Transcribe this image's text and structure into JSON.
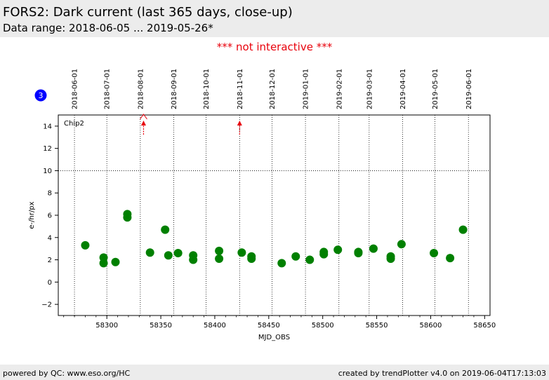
{
  "header": {
    "title": "FORS2: Dark current (last 365 days, close-up)",
    "subtitle": "Data range: 2018-06-05 ... 2019-05-26*"
  },
  "notice": "*** not interactive ***",
  "footer": {
    "left": "powered by QC: www.eso.org/HC",
    "right": "created by trendPlotter v4.0 on 2019-06-04T17:13:03"
  },
  "badge": "3",
  "colors": {
    "points": "#008000",
    "arrows": "#e8000b",
    "badge": "#0000ff"
  },
  "chart_data": {
    "type": "scatter",
    "panel_label": "Chip2",
    "xlabel": "MJD_OBS",
    "ylabel": "e-/hr/px",
    "xlim": [
      58255,
      58655
    ],
    "ylim": [
      -3,
      15
    ],
    "xticks": [
      58300,
      58350,
      58400,
      58450,
      58500,
      58550,
      58600,
      58650
    ],
    "yticks": [
      -2,
      0,
      2,
      4,
      6,
      8,
      10,
      12,
      14
    ],
    "reference_line": 10,
    "date_markers": [
      {
        "label": "2018-06-01",
        "x": 58270
      },
      {
        "label": "2018-07-01",
        "x": 58300
      },
      {
        "label": "2018-08-01",
        "x": 58331
      },
      {
        "label": "2018-09-01",
        "x": 58362
      },
      {
        "label": "2018-10-01",
        "x": 58392
      },
      {
        "label": "2018-11-01",
        "x": 58423
      },
      {
        "label": "2018-12-01",
        "x": 58453
      },
      {
        "label": "2019-01-01",
        "x": 58484
      },
      {
        "label": "2019-02-01",
        "x": 58515
      },
      {
        "label": "2019-03-01",
        "x": 58543
      },
      {
        "label": "2019-04-01",
        "x": 58574
      },
      {
        "label": "2019-05-01",
        "x": 58604
      },
      {
        "label": "2019-06-01",
        "x": 58635
      }
    ],
    "out_of_range_markers": [
      58334,
      58423
    ],
    "points": [
      {
        "x": 58280,
        "y": 3.3
      },
      {
        "x": 58297,
        "y": 2.2
      },
      {
        "x": 58297,
        "y": 1.7
      },
      {
        "x": 58308,
        "y": 1.8
      },
      {
        "x": 58319,
        "y": 6.1
      },
      {
        "x": 58319,
        "y": 5.8
      },
      {
        "x": 58340,
        "y": 2.65
      },
      {
        "x": 58354,
        "y": 4.7
      },
      {
        "x": 58357,
        "y": 2.4
      },
      {
        "x": 58366,
        "y": 2.6
      },
      {
        "x": 58380,
        "y": 2.4
      },
      {
        "x": 58380,
        "y": 2.0
      },
      {
        "x": 58404,
        "y": 2.8
      },
      {
        "x": 58404,
        "y": 2.1
      },
      {
        "x": 58425,
        "y": 2.65
      },
      {
        "x": 58434,
        "y": 2.3
      },
      {
        "x": 58434,
        "y": 2.1
      },
      {
        "x": 58462,
        "y": 1.7
      },
      {
        "x": 58475,
        "y": 2.3
      },
      {
        "x": 58488,
        "y": 2.0
      },
      {
        "x": 58501,
        "y": 2.7
      },
      {
        "x": 58501,
        "y": 2.5
      },
      {
        "x": 58514,
        "y": 2.9
      },
      {
        "x": 58533,
        "y": 2.7
      },
      {
        "x": 58533,
        "y": 2.6
      },
      {
        "x": 58547,
        "y": 3.0
      },
      {
        "x": 58563,
        "y": 2.3
      },
      {
        "x": 58563,
        "y": 2.1
      },
      {
        "x": 58573,
        "y": 3.4
      },
      {
        "x": 58603,
        "y": 2.6
      },
      {
        "x": 58618,
        "y": 2.15
      },
      {
        "x": 58630,
        "y": 4.7
      }
    ]
  }
}
